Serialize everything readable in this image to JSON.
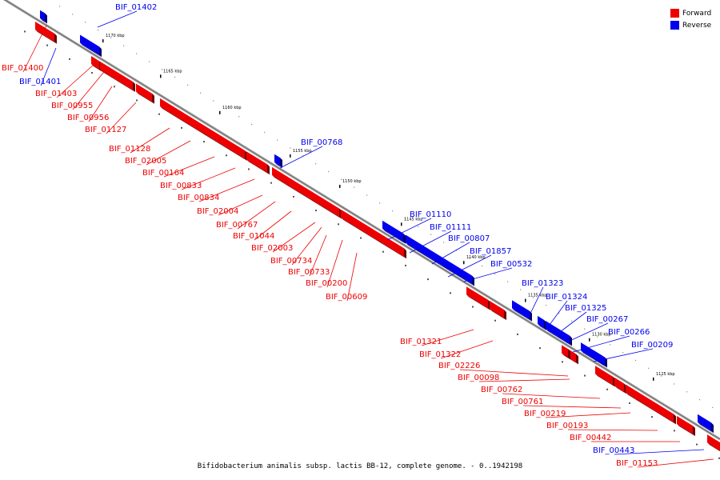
{
  "legend": {
    "forward": {
      "label": "Forward",
      "color": "#ee0000"
    },
    "reverse": {
      "label": "Reverse",
      "color": "#0000ee"
    }
  },
  "caption": "Bifidobacterium animalis subsp. lactis BB-12, complete genome. - 0..1942198",
  "ticks": [
    "1170 kbp",
    "1165 kbp",
    "1160 kbp",
    "1155 kbp",
    "1150 kbp",
    "1145 kbp",
    "1140 kbp",
    "1135 kbp",
    "1130 kbp",
    "1125 kbp"
  ],
  "genes": [
    {
      "label": "BIF_01402",
      "strand": "reverse"
    },
    {
      "label": "BIF_01400",
      "strand": "forward"
    },
    {
      "label": "BIF_01401",
      "strand": "reverse"
    },
    {
      "label": "BIF_01403",
      "strand": "forward"
    },
    {
      "label": "BIF_00955",
      "strand": "forward"
    },
    {
      "label": "BIF_00956",
      "strand": "forward"
    },
    {
      "label": "BIF_01127",
      "strand": "forward"
    },
    {
      "label": "BIF_01128",
      "strand": "forward"
    },
    {
      "label": "BIF_02005",
      "strand": "forward"
    },
    {
      "label": "BIF_00164",
      "strand": "forward"
    },
    {
      "label": "BIF_00833",
      "strand": "forward"
    },
    {
      "label": "BIF_00834",
      "strand": "forward"
    },
    {
      "label": "BIF_00768",
      "strand": "reverse"
    },
    {
      "label": "BIF_02004",
      "strand": "forward"
    },
    {
      "label": "BIF_00767",
      "strand": "forward"
    },
    {
      "label": "BIF_01044",
      "strand": "forward"
    },
    {
      "label": "BIF_02003",
      "strand": "forward"
    },
    {
      "label": "BIF_00734",
      "strand": "forward"
    },
    {
      "label": "BIF_00733",
      "strand": "forward"
    },
    {
      "label": "BIF_00200",
      "strand": "forward"
    },
    {
      "label": "BIF_00609",
      "strand": "forward"
    },
    {
      "label": "BIF_01110",
      "strand": "reverse"
    },
    {
      "label": "BIF_01111",
      "strand": "reverse"
    },
    {
      "label": "BIF_00807",
      "strand": "reverse"
    },
    {
      "label": "BIF_01857",
      "strand": "reverse"
    },
    {
      "label": "BIF_00532",
      "strand": "reverse"
    },
    {
      "label": "BIF_01323",
      "strand": "reverse"
    },
    {
      "label": "BIF_01324",
      "strand": "reverse"
    },
    {
      "label": "BIF_01325",
      "strand": "reverse"
    },
    {
      "label": "BIF_00267",
      "strand": "reverse"
    },
    {
      "label": "BIF_00266",
      "strand": "reverse"
    },
    {
      "label": "BIF_00209",
      "strand": "reverse"
    },
    {
      "label": "BIF_01321",
      "strand": "forward"
    },
    {
      "label": "BIF_01322",
      "strand": "forward"
    },
    {
      "label": "BIF_02226",
      "strand": "forward"
    },
    {
      "label": "BIF_00098",
      "strand": "forward"
    },
    {
      "label": "BIF_00762",
      "strand": "forward"
    },
    {
      "label": "BIF_00761",
      "strand": "forward"
    },
    {
      "label": "BIF_00219",
      "strand": "forward"
    },
    {
      "label": "BIF_00193",
      "strand": "forward"
    },
    {
      "label": "BIF_00442",
      "strand": "forward"
    },
    {
      "label": "BIF_00443",
      "strand": "reverse"
    },
    {
      "label": "BIF_01153",
      "strand": "forward"
    }
  ]
}
